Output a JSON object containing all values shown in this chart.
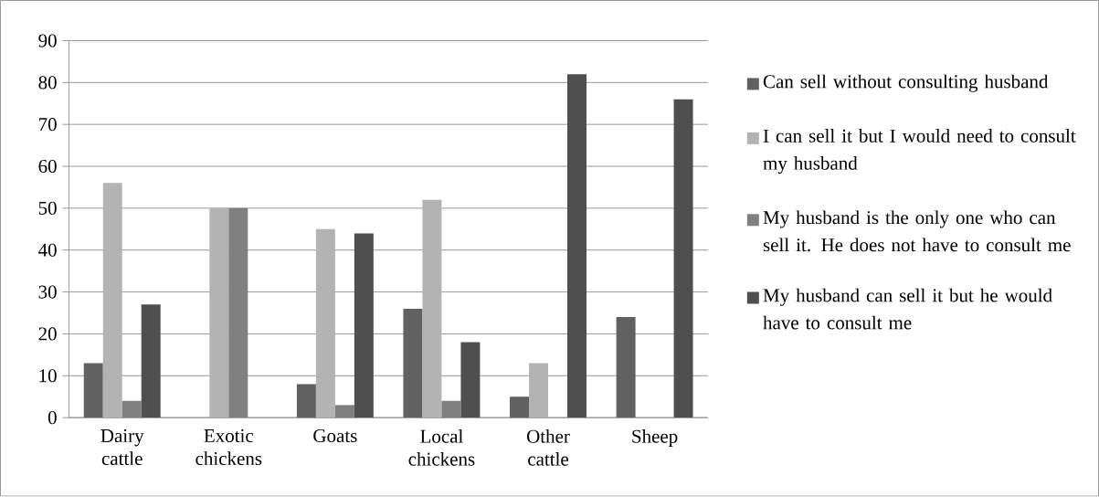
{
  "chart_data": {
    "type": "bar",
    "categories": [
      "Dairy cattle",
      "Exotic chickens",
      "Goats",
      "Local chickens",
      "Other cattle",
      "Sheep"
    ],
    "series": [
      {
        "name": "Can sell without consulting husband",
        "color": "#616161",
        "values": [
          13,
          null,
          8,
          26,
          5,
          24
        ]
      },
      {
        "name": "I can sell it but I would need to consult my husband",
        "color": "#b3b3b3",
        "values": [
          56,
          50,
          45,
          52,
          13,
          null
        ]
      },
      {
        "name": "My husband is the only one who can sell it. He does not have to consult me",
        "color": "#808080",
        "values": [
          4,
          50,
          3,
          4,
          null,
          null
        ]
      },
      {
        "name": "My husband can sell it but he would have to consult me",
        "color": "#4f4f4f",
        "values": [
          27,
          null,
          44,
          18,
          82,
          76
        ]
      }
    ],
    "ylim": [
      0,
      90
    ],
    "yticks": [
      0,
      10,
      20,
      30,
      40,
      50,
      60,
      70,
      80,
      90
    ],
    "grid": "y",
    "legend": "right"
  }
}
